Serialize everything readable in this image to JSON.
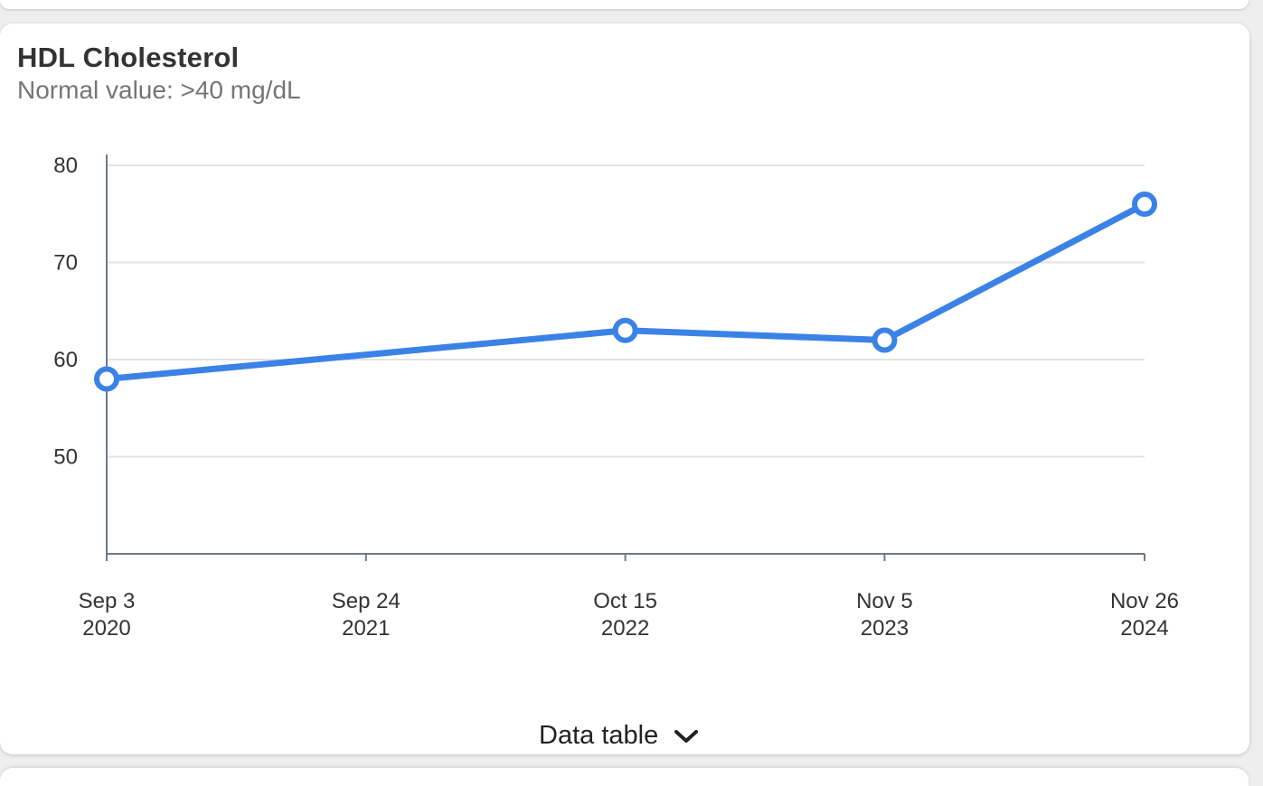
{
  "card": {
    "title": "HDL Cholesterol",
    "subtitle": "Normal value: >40 mg/dL"
  },
  "chart_data": {
    "type": "line",
    "title": "HDL Cholesterol",
    "subtitle": "Normal value: >40 mg/dL",
    "x_dates": [
      "2020-09-03",
      "2022-10-15",
      "2023-11-05",
      "2024-11-26"
    ],
    "values": [
      58,
      63,
      62,
      76
    ],
    "x_ticks": [
      {
        "date": "2020-09-03",
        "line1": "Sep 3",
        "line2": "2020"
      },
      {
        "date": "2021-09-24",
        "line1": "Sep 24",
        "line2": "2021"
      },
      {
        "date": "2022-10-15",
        "line1": "Oct 15",
        "line2": "2022"
      },
      {
        "date": "2023-11-05",
        "line1": "Nov 5",
        "line2": "2023"
      },
      {
        "date": "2024-11-26",
        "line1": "Nov 26",
        "line2": "2024"
      }
    ],
    "y_ticks": [
      50,
      60,
      70,
      80
    ],
    "ylim": [
      40,
      80
    ],
    "grid": true,
    "line_color": "#3b82e6"
  },
  "footer": {
    "data_table_label": "Data table",
    "chevron_icon": "chevron-down-icon"
  }
}
